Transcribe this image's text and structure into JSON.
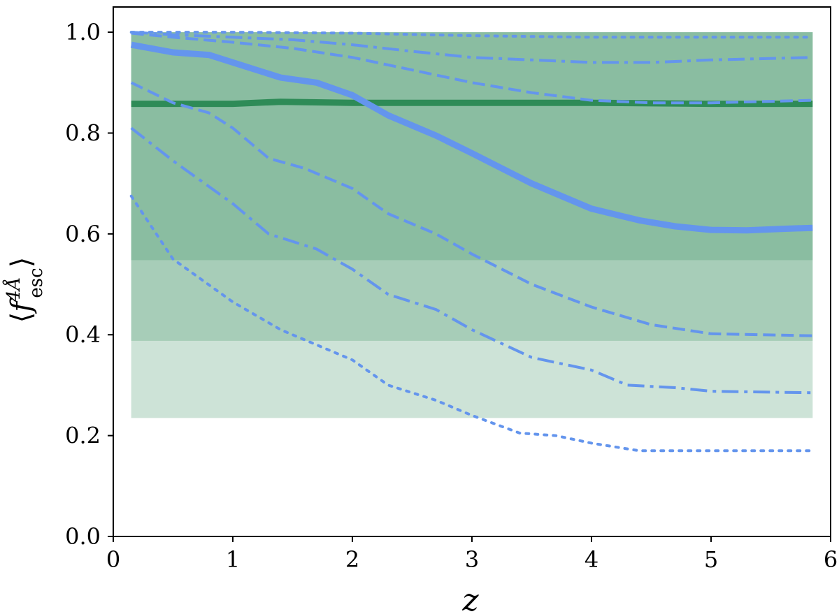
{
  "chart_data": {
    "type": "line",
    "title": "",
    "xlabel": "z",
    "ylabel": "⟨f_esc^4Å⟩",
    "xlim": [
      0,
      6
    ],
    "ylim": [
      0,
      1.05
    ],
    "xticks": [
      "0",
      "1",
      "2",
      "3",
      "4",
      "5",
      "6"
    ],
    "yticks": [
      "0.0",
      "0.2",
      "0.4",
      "0.6",
      "0.8",
      "1.0"
    ],
    "grid": false,
    "legend": "none",
    "colors": {
      "band": "#2e8b57",
      "blue": "#6495ed",
      "green_line": "#2e8b57"
    },
    "bands": [
      {
        "x": [
          0.15,
          5.85
        ],
        "lower": [
          0.235,
          0.235
        ],
        "upper": [
          1.0,
          1.0
        ],
        "opacity": 0.24
      },
      {
        "x": [
          0.15,
          5.85
        ],
        "lower": [
          0.388,
          0.388
        ],
        "upper": [
          1.0,
          1.0
        ],
        "opacity": 0.24
      },
      {
        "x": [
          0.15,
          5.85
        ],
        "lower": [
          0.548,
          0.548
        ],
        "upper": [
          1.0,
          1.0
        ],
        "opacity": 0.24
      }
    ],
    "series": [
      {
        "style": "solid",
        "color": "#2e8b57",
        "width": "thick",
        "x": [
          0.15,
          1.0,
          1.4,
          2.0,
          3.0,
          4.0,
          5.0,
          5.85
        ],
        "y": [
          0.858,
          0.858,
          0.862,
          0.86,
          0.86,
          0.86,
          0.858,
          0.858
        ]
      },
      {
        "style": "solid",
        "color": "#6495ed",
        "width": "thick",
        "x": [
          0.15,
          0.5,
          0.8,
          1.0,
          1.4,
          1.7,
          2.0,
          2.3,
          2.7,
          3.0,
          3.5,
          4.0,
          4.4,
          4.7,
          5.0,
          5.3,
          5.6,
          5.85
        ],
        "y": [
          0.975,
          0.96,
          0.955,
          0.94,
          0.91,
          0.9,
          0.875,
          0.835,
          0.795,
          0.76,
          0.7,
          0.65,
          0.627,
          0.615,
          0.608,
          0.607,
          0.61,
          0.612
        ]
      },
      {
        "style": "dashed",
        "color": "#6495ed",
        "width": "normal",
        "x": [
          0.15,
          0.5,
          1.0,
          1.5,
          2.0,
          2.5,
          3.0,
          3.5,
          4.0,
          4.5,
          5.0,
          5.85
        ],
        "y": [
          0.998,
          0.99,
          0.98,
          0.968,
          0.95,
          0.925,
          0.9,
          0.88,
          0.865,
          0.86,
          0.86,
          0.865
        ]
      },
      {
        "style": "dashed",
        "color": "#6495ed",
        "width": "normal",
        "x": [
          0.15,
          0.5,
          0.8,
          1.0,
          1.3,
          1.6,
          2.0,
          2.3,
          2.7,
          3.0,
          3.5,
          4.0,
          4.5,
          5.0,
          5.85
        ],
        "y": [
          0.9,
          0.86,
          0.84,
          0.81,
          0.75,
          0.73,
          0.69,
          0.64,
          0.6,
          0.56,
          0.5,
          0.455,
          0.42,
          0.402,
          0.398
        ]
      },
      {
        "style": "dashdot",
        "color": "#6495ed",
        "width": "normal",
        "x": [
          0.15,
          0.5,
          1.0,
          1.5,
          2.0,
          2.5,
          3.0,
          3.5,
          4.0,
          4.5,
          5.0,
          5.85
        ],
        "y": [
          1.0,
          0.995,
          0.99,
          0.985,
          0.975,
          0.962,
          0.95,
          0.945,
          0.94,
          0.94,
          0.945,
          0.95
        ]
      },
      {
        "style": "dashdot",
        "color": "#6495ed",
        "width": "normal",
        "x": [
          0.15,
          0.5,
          1.0,
          1.3,
          1.7,
          2.0,
          2.3,
          2.7,
          3.0,
          3.5,
          4.0,
          4.3,
          4.7,
          5.0,
          5.85
        ],
        "y": [
          0.81,
          0.745,
          0.66,
          0.6,
          0.57,
          0.53,
          0.48,
          0.45,
          0.41,
          0.355,
          0.33,
          0.3,
          0.295,
          0.288,
          0.285
        ]
      },
      {
        "style": "dotted",
        "color": "#6495ed",
        "width": "normal",
        "x": [
          0.15,
          1.0,
          2.0,
          3.0,
          4.0,
          5.0,
          5.85
        ],
        "y": [
          1.0,
          1.0,
          0.998,
          0.993,
          0.99,
          0.99,
          0.99
        ]
      },
      {
        "style": "dotted",
        "color": "#6495ed",
        "width": "normal",
        "x": [
          0.15,
          0.5,
          1.0,
          1.4,
          2.0,
          2.3,
          2.7,
          3.0,
          3.4,
          3.7,
          4.0,
          4.4,
          5.0,
          5.85
        ],
        "y": [
          0.675,
          0.55,
          0.465,
          0.41,
          0.35,
          0.3,
          0.27,
          0.24,
          0.205,
          0.2,
          0.185,
          0.17,
          0.17,
          0.17
        ]
      }
    ]
  }
}
